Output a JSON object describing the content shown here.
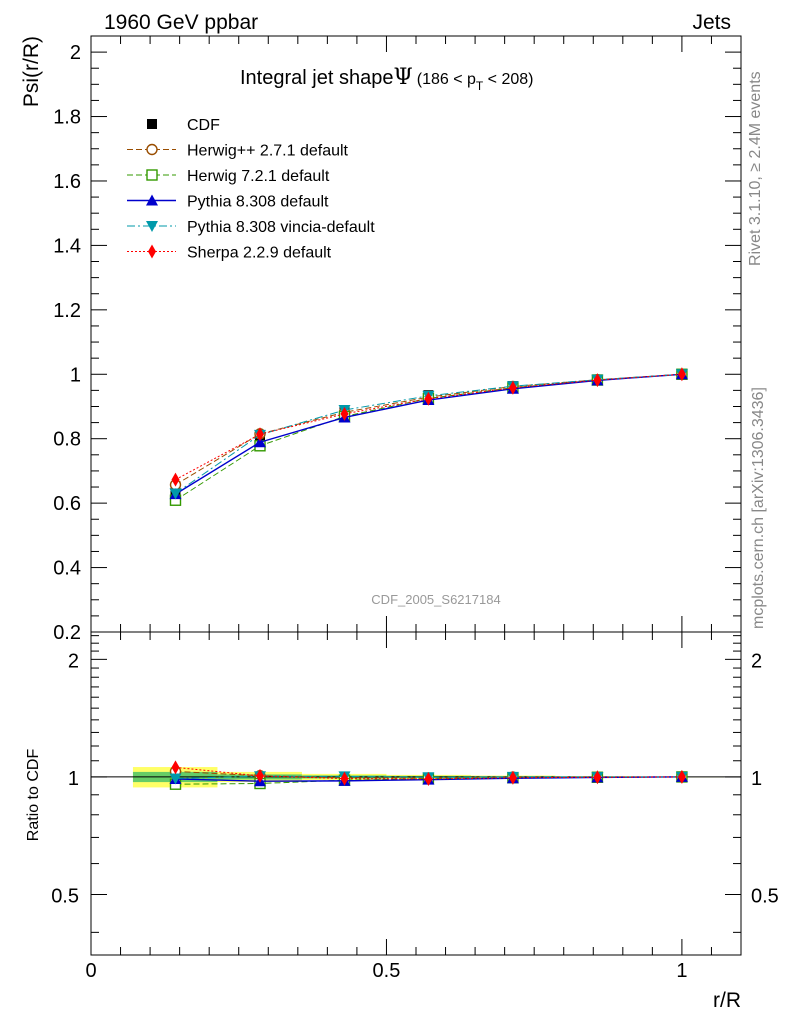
{
  "header": {
    "left": "1960 GeV ppbar",
    "right": "Jets"
  },
  "side_labels": {
    "rivet": "Rivet 3.1.10, ≥ 2.4M events",
    "mcplots": "mcplots.cern.ch [arXiv:1306.3436]"
  },
  "chart_data": [
    {
      "type": "line",
      "panel": "main",
      "title": "Integral jet shape",
      "title_symbol": "Ψ",
      "title_range": {
        "pre": "(186 < p",
        "sub": "T",
        "post": " < 208)"
      },
      "ylabel": "Psi(r/R)",
      "xlabel": "",
      "xlim": [
        0,
        1.1
      ],
      "ylim": [
        0.2,
        2.05
      ],
      "yticks": [
        "0.2",
        "0.4",
        "0.6",
        "0.8",
        "1",
        "1.2",
        "1.4",
        "1.6",
        "1.8",
        "2"
      ],
      "watermark": "CDF_2005_S6217184",
      "legend_position": "top-left",
      "x": [
        0.143,
        0.286,
        0.429,
        0.571,
        0.714,
        0.857,
        1.0
      ],
      "series": [
        {
          "name": "CDF",
          "color": "#000000",
          "marker": "square-filled",
          "line": "none",
          "values": [
            0.636,
            0.809,
            0.886,
            0.935,
            0.963,
            0.984,
            1.0
          ],
          "yerr": [
            0.02,
            0.012,
            0.008,
            0.006,
            0.004,
            0.002,
            0.0
          ]
        },
        {
          "name": "Herwig++ 2.7.1 default",
          "color": "#994d00",
          "marker": "circle-open",
          "line": "dashed",
          "values": [
            0.657,
            0.815,
            0.882,
            0.929,
            0.962,
            0.983,
            1.0
          ]
        },
        {
          "name": "Herwig 7.2.1 default",
          "color": "#339900",
          "marker": "square-open",
          "line": "dashed",
          "values": [
            0.609,
            0.778,
            0.869,
            0.925,
            0.958,
            0.982,
            1.0
          ]
        },
        {
          "name": "Pythia 8.308 default",
          "color": "#0000cc",
          "marker": "triangle-up",
          "line": "solid",
          "values": [
            0.628,
            0.789,
            0.866,
            0.92,
            0.955,
            0.981,
            1.0
          ]
        },
        {
          "name": "Pythia 8.308 vincia-default",
          "color": "#0099aa",
          "marker": "triangle-down",
          "line": "dashdot",
          "values": [
            0.63,
            0.812,
            0.889,
            0.933,
            0.963,
            0.983,
            1.0
          ]
        },
        {
          "name": "Sherpa 2.2.9 default",
          "color": "#ff0000",
          "marker": "diamond",
          "line": "dotted",
          "values": [
            0.673,
            0.814,
            0.877,
            0.924,
            0.958,
            0.982,
            1.0
          ]
        }
      ]
    },
    {
      "type": "line",
      "panel": "ratio",
      "ylabel": "Ratio to CDF",
      "xlabel": "r/R",
      "xlim": [
        0,
        1.1
      ],
      "ylim": [
        0.35,
        2.35
      ],
      "scale": "log",
      "yticks": [
        "0.5",
        "1",
        "2"
      ],
      "xticks": [
        "0",
        "0.5",
        "1"
      ],
      "band": {
        "color_inner": "#66cc66",
        "color_outer": "#ffff66",
        "x_edges": [
          0.071,
          0.214,
          0.357,
          0.5,
          0.643,
          0.786,
          0.929,
          1.071
        ],
        "inner": [
          0.03,
          0.015,
          0.009,
          0.006,
          0.004,
          0.002,
          0.001
        ],
        "outer": [
          0.06,
          0.03,
          0.018,
          0.012,
          0.008,
          0.004,
          0.002
        ]
      },
      "x": [
        0.143,
        0.286,
        0.429,
        0.571,
        0.714,
        0.857,
        1.0
      ],
      "series": [
        {
          "name": "CDF",
          "color": "#000000",
          "marker": "none",
          "line": "solid",
          "values": [
            1,
            1,
            1,
            1,
            1,
            1,
            1
          ]
        },
        {
          "name": "Herwig++ 2.7.1 default",
          "color": "#994d00",
          "marker": "circle-open",
          "line": "dashed",
          "values": [
            1.033,
            1.007,
            0.995,
            0.994,
            0.999,
            0.999,
            1.0
          ]
        },
        {
          "name": "Herwig 7.2.1 default",
          "color": "#339900",
          "marker": "square-open",
          "line": "dashed",
          "values": [
            0.958,
            0.962,
            0.981,
            0.989,
            0.995,
            0.998,
            1.0
          ]
        },
        {
          "name": "Pythia 8.308 default",
          "color": "#0000cc",
          "marker": "triangle-up",
          "line": "solid",
          "values": [
            0.988,
            0.975,
            0.977,
            0.984,
            0.992,
            0.997,
            1.0
          ]
        },
        {
          "name": "Pythia 8.308 vincia-default",
          "color": "#0099aa",
          "marker": "triangle-down",
          "line": "dashdot",
          "values": [
            0.991,
            1.004,
            1.003,
            0.998,
            1.0,
            0.999,
            1.0
          ]
        },
        {
          "name": "Sherpa 2.2.9 default",
          "color": "#ff0000",
          "marker": "diamond",
          "line": "dotted",
          "values": [
            1.058,
            1.006,
            0.99,
            0.988,
            0.995,
            0.998,
            1.0
          ]
        }
      ]
    }
  ]
}
